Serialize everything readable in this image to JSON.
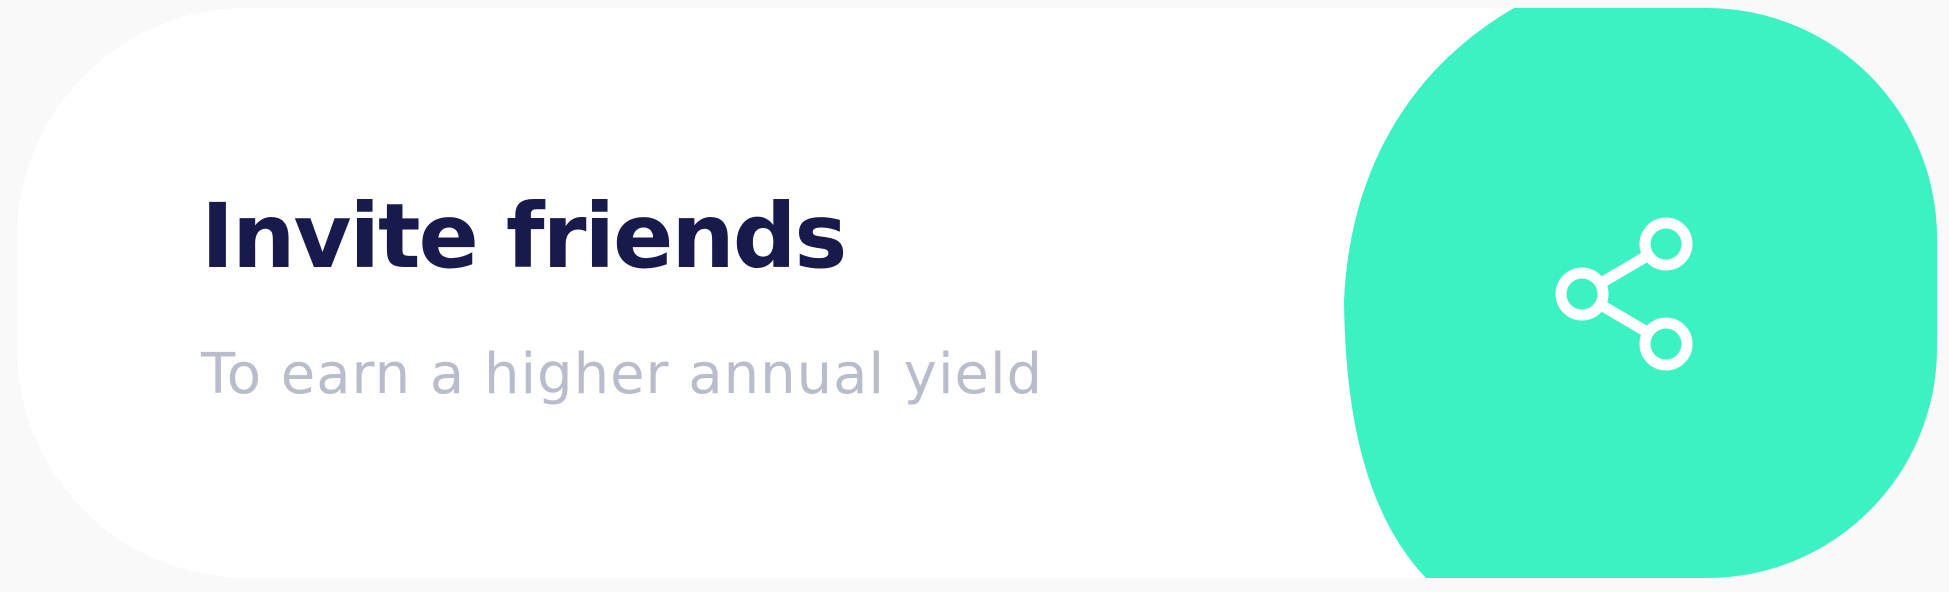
{
  "card": {
    "title": "Invite friends",
    "subtitle": "To earn a higher annual yield"
  },
  "icons": {
    "action": "share-icon"
  },
  "colors": {
    "background": "#f9f9fa",
    "card": "#ffffff",
    "accent": "#3df2c2",
    "title": "#171a4a",
    "subtitle": "#b9bccc",
    "icon": "#ffffff"
  }
}
